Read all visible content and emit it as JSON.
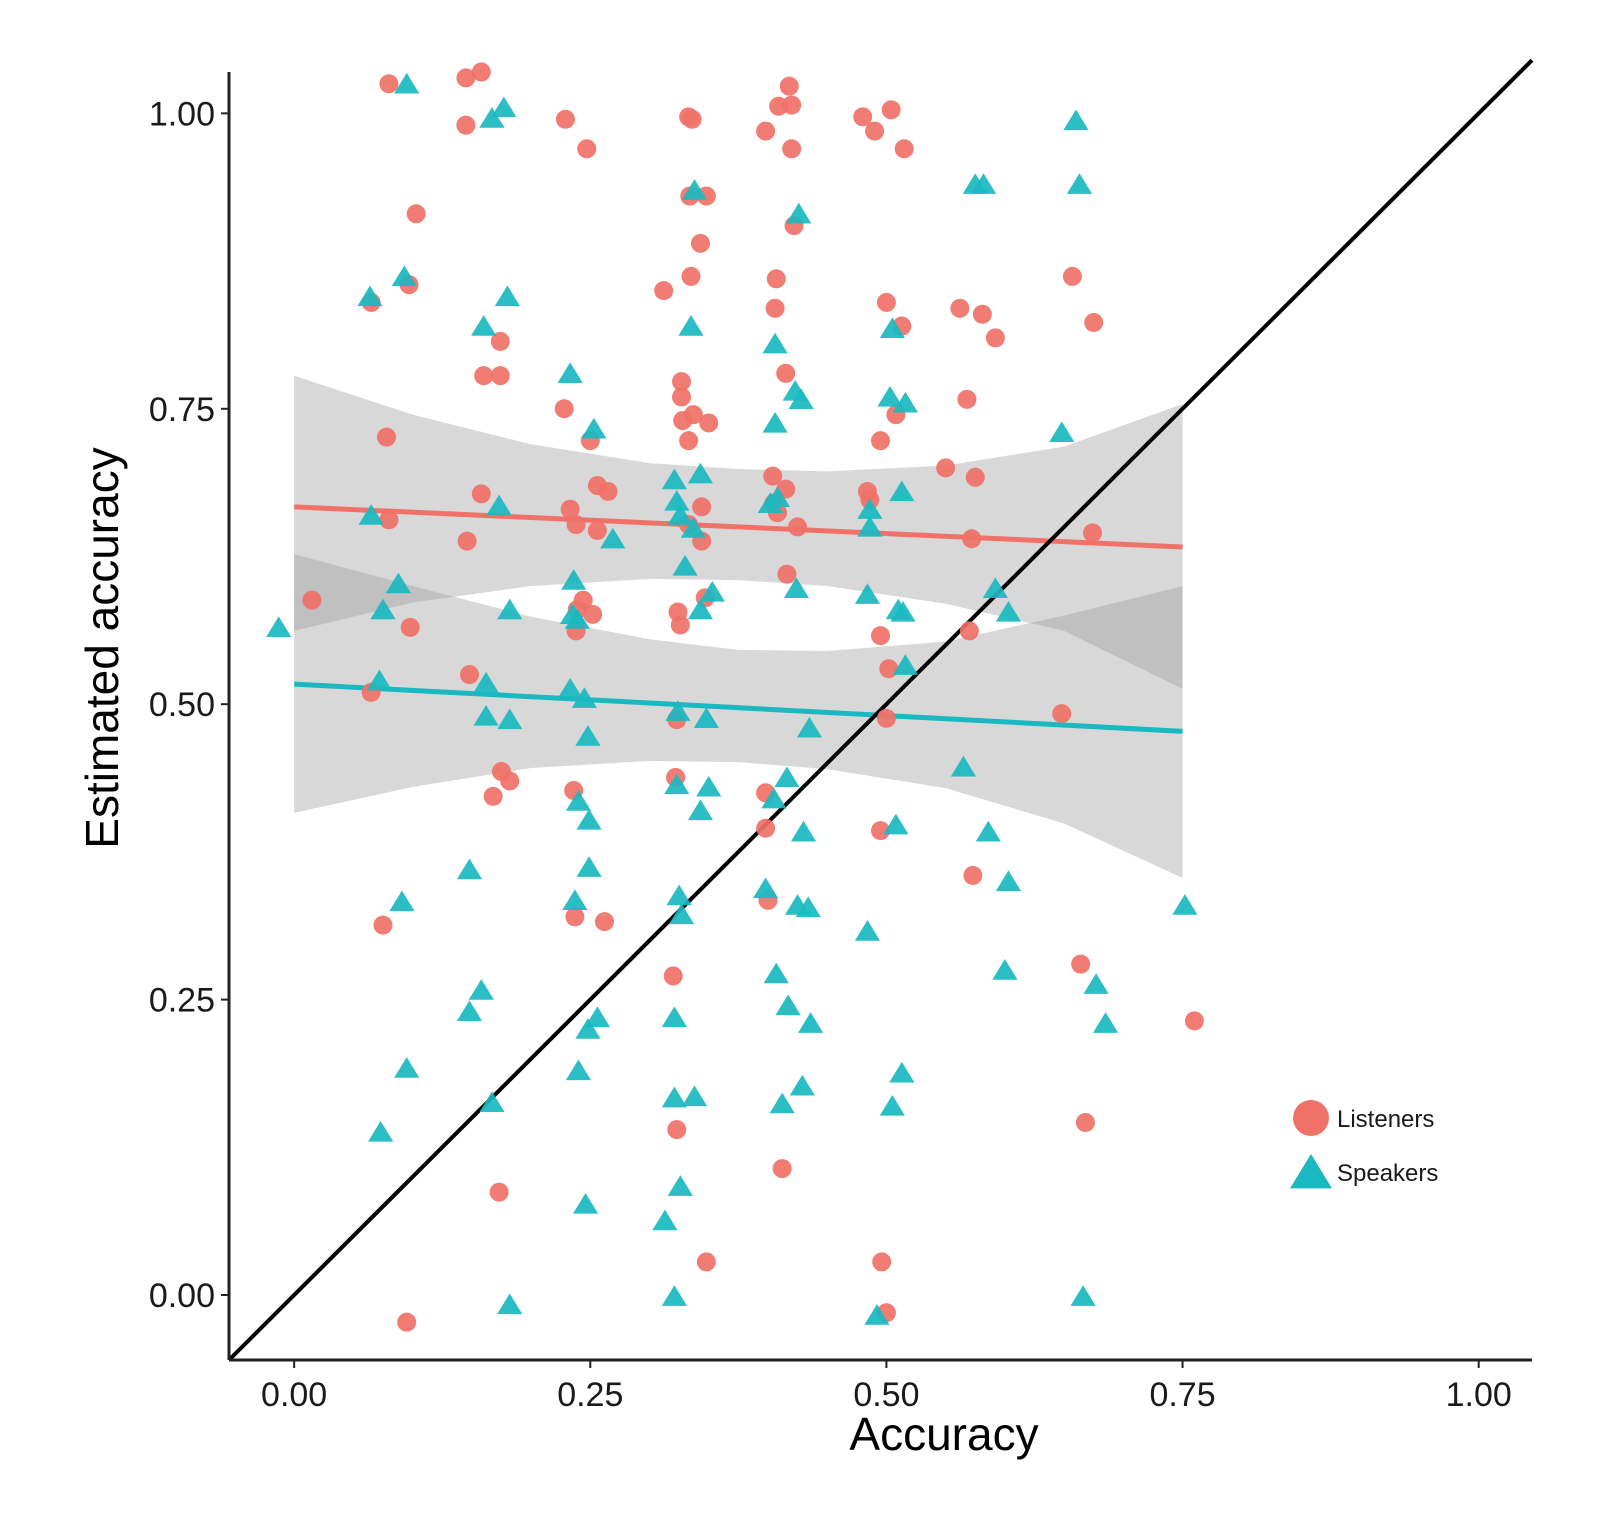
{
  "chart_data": {
    "type": "scatter",
    "title": "",
    "xlabel": "Accuracy",
    "ylabel": "Estimated accuracy",
    "xlim": [
      -0.055,
      1.045
    ],
    "ylim": [
      -0.055,
      1.035
    ],
    "x_ticks": [
      0.0,
      0.25,
      0.5,
      0.75,
      1.0
    ],
    "x_tick_labels": [
      "0.00",
      "0.25",
      "0.50",
      "0.75",
      "1.00"
    ],
    "y_ticks": [
      0.0,
      0.25,
      0.5,
      0.75,
      1.0
    ],
    "y_tick_labels": [
      "0.00",
      "0.25",
      "0.50",
      "0.75",
      "1.00"
    ],
    "grid": false,
    "legend_position": "bottom-right",
    "identity_line": {
      "from": [
        -0.055,
        -0.055
      ],
      "to": [
        1.045,
        1.045
      ],
      "color": "#000000"
    },
    "series": [
      {
        "name": "Listeners",
        "marker": "circle",
        "color": "#F07167",
        "fit": {
          "x": [
            0.0,
            0.75
          ],
          "y": [
            0.667,
            0.633
          ]
        },
        "ci_band": {
          "x": [
            0.0,
            0.1,
            0.2,
            0.3,
            0.375,
            0.45,
            0.55,
            0.65,
            0.75
          ],
          "lower": [
            0.562,
            0.586,
            0.6,
            0.606,
            0.605,
            0.6,
            0.585,
            0.562,
            0.513
          ],
          "upper": [
            0.778,
            0.745,
            0.72,
            0.704,
            0.699,
            0.697,
            0.702,
            0.718,
            0.754
          ]
        },
        "points": [
          [
            0.08,
            1.025
          ],
          [
            0.145,
            1.03
          ],
          [
            0.158,
            1.035
          ],
          [
            0.145,
            0.99
          ],
          [
            0.229,
            0.995
          ],
          [
            0.247,
            0.97
          ],
          [
            0.333,
            0.997
          ],
          [
            0.336,
            0.995
          ],
          [
            0.409,
            1.006
          ],
          [
            0.42,
            1.007
          ],
          [
            0.418,
            1.023
          ],
          [
            0.398,
            0.985
          ],
          [
            0.42,
            0.97
          ],
          [
            0.48,
            0.997
          ],
          [
            0.504,
            1.003
          ],
          [
            0.49,
            0.985
          ],
          [
            0.515,
            0.97
          ],
          [
            0.103,
            0.915
          ],
          [
            0.334,
            0.93
          ],
          [
            0.348,
            0.93
          ],
          [
            0.343,
            0.89
          ],
          [
            0.335,
            0.862
          ],
          [
            0.312,
            0.85
          ],
          [
            0.407,
            0.86
          ],
          [
            0.406,
            0.835
          ],
          [
            0.422,
            0.905
          ],
          [
            0.5,
            0.84
          ],
          [
            0.513,
            0.82
          ],
          [
            0.562,
            0.835
          ],
          [
            0.581,
            0.83
          ],
          [
            0.592,
            0.81
          ],
          [
            0.657,
            0.862
          ],
          [
            0.675,
            0.823
          ],
          [
            0.065,
            0.84
          ],
          [
            0.097,
            0.855
          ],
          [
            0.174,
            0.807
          ],
          [
            0.16,
            0.778
          ],
          [
            0.174,
            0.778
          ],
          [
            0.228,
            0.75
          ],
          [
            0.25,
            0.723
          ],
          [
            0.327,
            0.773
          ],
          [
            0.327,
            0.76
          ],
          [
            0.328,
            0.74
          ],
          [
            0.337,
            0.745
          ],
          [
            0.35,
            0.738
          ],
          [
            0.333,
            0.723
          ],
          [
            0.415,
            0.78
          ],
          [
            0.495,
            0.723
          ],
          [
            0.508,
            0.745
          ],
          [
            0.568,
            0.758
          ],
          [
            0.078,
            0.726
          ],
          [
            0.146,
            0.638
          ],
          [
            0.158,
            0.678
          ],
          [
            0.08,
            0.656
          ],
          [
            0.015,
            0.588
          ],
          [
            0.233,
            0.665
          ],
          [
            0.256,
            0.685
          ],
          [
            0.265,
            0.68
          ],
          [
            0.238,
            0.652
          ],
          [
            0.256,
            0.647
          ],
          [
            0.344,
            0.667
          ],
          [
            0.344,
            0.638
          ],
          [
            0.333,
            0.652
          ],
          [
            0.404,
            0.693
          ],
          [
            0.415,
            0.682
          ],
          [
            0.405,
            0.67
          ],
          [
            0.408,
            0.662
          ],
          [
            0.425,
            0.65
          ],
          [
            0.486,
            0.673
          ],
          [
            0.55,
            0.7
          ],
          [
            0.572,
            0.64
          ],
          [
            0.575,
            0.692
          ],
          [
            0.674,
            0.645
          ],
          [
            0.098,
            0.565
          ],
          [
            0.244,
            0.588
          ],
          [
            0.239,
            0.58
          ],
          [
            0.252,
            0.576
          ],
          [
            0.238,
            0.562
          ],
          [
            0.324,
            0.578
          ],
          [
            0.326,
            0.567
          ],
          [
            0.347,
            0.59
          ],
          [
            0.416,
            0.61
          ],
          [
            0.495,
            0.558
          ],
          [
            0.502,
            0.53
          ],
          [
            0.57,
            0.562
          ],
          [
            0.148,
            0.525
          ],
          [
            0.065,
            0.51
          ],
          [
            0.484,
            0.68
          ],
          [
            0.175,
            0.443
          ],
          [
            0.182,
            0.435
          ],
          [
            0.168,
            0.422
          ],
          [
            0.236,
            0.427
          ],
          [
            0.237,
            0.32
          ],
          [
            0.262,
            0.316
          ],
          [
            0.323,
            0.487
          ],
          [
            0.322,
            0.438
          ],
          [
            0.398,
            0.425
          ],
          [
            0.398,
            0.395
          ],
          [
            0.4,
            0.334
          ],
          [
            0.495,
            0.393
          ],
          [
            0.5,
            0.488
          ],
          [
            0.573,
            0.355
          ],
          [
            0.648,
            0.492
          ],
          [
            0.075,
            0.313
          ],
          [
            0.32,
            0.27
          ],
          [
            0.664,
            0.28
          ],
          [
            0.76,
            0.232
          ],
          [
            0.323,
            0.14
          ],
          [
            0.412,
            0.107
          ],
          [
            0.173,
            0.087
          ],
          [
            0.348,
            0.028
          ],
          [
            0.496,
            0.028
          ],
          [
            0.5,
            -0.015
          ],
          [
            0.095,
            -0.023
          ],
          [
            0.668,
            0.146
          ]
        ]
      },
      {
        "name": "Speakers",
        "marker": "triangle",
        "color": "#1AB8C0",
        "fit": {
          "x": [
            0.0,
            0.75
          ],
          "y": [
            0.517,
            0.477
          ]
        },
        "ci_band": {
          "x": [
            0.0,
            0.1,
            0.2,
            0.3,
            0.375,
            0.45,
            0.55,
            0.65,
            0.75
          ],
          "lower": [
            0.408,
            0.43,
            0.446,
            0.452,
            0.451,
            0.445,
            0.429,
            0.399,
            0.353
          ],
          "upper": [
            0.627,
            0.6,
            0.574,
            0.555,
            0.546,
            0.545,
            0.553,
            0.575,
            0.6
          ]
        },
        "points": [
          [
            0.095,
            1.025
          ],
          [
            0.167,
            0.996
          ],
          [
            0.177,
            1.005
          ],
          [
            0.66,
            0.994
          ],
          [
            0.338,
            0.935
          ],
          [
            0.426,
            0.915
          ],
          [
            0.575,
            0.94
          ],
          [
            0.582,
            0.94
          ],
          [
            0.663,
            0.94
          ],
          [
            0.093,
            0.862
          ],
          [
            0.064,
            0.845
          ],
          [
            0.18,
            0.845
          ],
          [
            0.16,
            0.82
          ],
          [
            0.335,
            0.82
          ],
          [
            0.406,
            0.805
          ],
          [
            0.505,
            0.818
          ],
          [
            0.233,
            0.78
          ],
          [
            0.253,
            0.733
          ],
          [
            0.423,
            0.765
          ],
          [
            0.428,
            0.758
          ],
          [
            0.406,
            0.738
          ],
          [
            0.503,
            0.76
          ],
          [
            0.516,
            0.755
          ],
          [
            0.648,
            0.73
          ],
          [
            0.065,
            0.66
          ],
          [
            0.173,
            0.668
          ],
          [
            0.269,
            0.64
          ],
          [
            0.321,
            0.69
          ],
          [
            0.323,
            0.672
          ],
          [
            0.343,
            0.695
          ],
          [
            0.326,
            0.66
          ],
          [
            0.337,
            0.649
          ],
          [
            0.402,
            0.67
          ],
          [
            0.408,
            0.675
          ],
          [
            0.486,
            0.665
          ],
          [
            0.486,
            0.65
          ],
          [
            0.513,
            0.68
          ],
          [
            0.088,
            0.602
          ],
          [
            0.075,
            0.58
          ],
          [
            0.182,
            0.58
          ],
          [
            0.236,
            0.605
          ],
          [
            0.235,
            0.576
          ],
          [
            0.239,
            0.572
          ],
          [
            0.33,
            0.617
          ],
          [
            0.343,
            0.58
          ],
          [
            0.353,
            0.595
          ],
          [
            0.424,
            0.598
          ],
          [
            0.484,
            0.593
          ],
          [
            0.51,
            0.58
          ],
          [
            0.514,
            0.578
          ],
          [
            0.592,
            0.598
          ],
          [
            0.603,
            0.578
          ],
          [
            -0.013,
            0.565
          ],
          [
            0.072,
            0.52
          ],
          [
            0.162,
            0.518
          ],
          [
            0.162,
            0.49
          ],
          [
            0.182,
            0.487
          ],
          [
            0.233,
            0.513
          ],
          [
            0.245,
            0.505
          ],
          [
            0.248,
            0.473
          ],
          [
            0.324,
            0.494
          ],
          [
            0.348,
            0.488
          ],
          [
            0.435,
            0.48
          ],
          [
            0.516,
            0.533
          ],
          [
            0.565,
            0.447
          ],
          [
            0.148,
            0.36
          ],
          [
            0.24,
            0.418
          ],
          [
            0.249,
            0.402
          ],
          [
            0.249,
            0.362
          ],
          [
            0.237,
            0.334
          ],
          [
            0.323,
            0.432
          ],
          [
            0.325,
            0.338
          ],
          [
            0.327,
            0.322
          ],
          [
            0.35,
            0.43
          ],
          [
            0.343,
            0.41
          ],
          [
            0.398,
            0.344
          ],
          [
            0.405,
            0.42
          ],
          [
            0.416,
            0.438
          ],
          [
            0.43,
            0.392
          ],
          [
            0.425,
            0.33
          ],
          [
            0.434,
            0.328
          ],
          [
            0.508,
            0.398
          ],
          [
            0.586,
            0.392
          ],
          [
            0.603,
            0.35
          ],
          [
            0.484,
            0.308
          ],
          [
            0.752,
            0.33
          ],
          [
            0.091,
            0.333
          ],
          [
            0.158,
            0.258
          ],
          [
            0.148,
            0.24
          ],
          [
            0.256,
            0.235
          ],
          [
            0.248,
            0.225
          ],
          [
            0.321,
            0.235
          ],
          [
            0.407,
            0.272
          ],
          [
            0.417,
            0.245
          ],
          [
            0.436,
            0.23
          ],
          [
            0.6,
            0.275
          ],
          [
            0.677,
            0.263
          ],
          [
            0.685,
            0.23
          ],
          [
            0.095,
            0.192
          ],
          [
            0.24,
            0.19
          ],
          [
            0.167,
            0.163
          ],
          [
            0.321,
            0.167
          ],
          [
            0.338,
            0.168
          ],
          [
            0.412,
            0.162
          ],
          [
            0.429,
            0.177
          ],
          [
            0.505,
            0.16
          ],
          [
            0.513,
            0.188
          ],
          [
            0.073,
            0.138
          ],
          [
            0.246,
            0.077
          ],
          [
            0.326,
            0.092
          ],
          [
            0.313,
            0.063
          ],
          [
            0.182,
            -0.008
          ],
          [
            0.321,
            -0.001
          ],
          [
            0.492,
            -0.017
          ],
          [
            0.666,
            -0.001
          ]
        ]
      }
    ]
  },
  "legend": {
    "items": [
      {
        "label": "Listeners",
        "marker": "circle",
        "color": "#F07167"
      },
      {
        "label": "Speakers",
        "marker": "triangle",
        "color": "#1AB8C0"
      }
    ]
  }
}
